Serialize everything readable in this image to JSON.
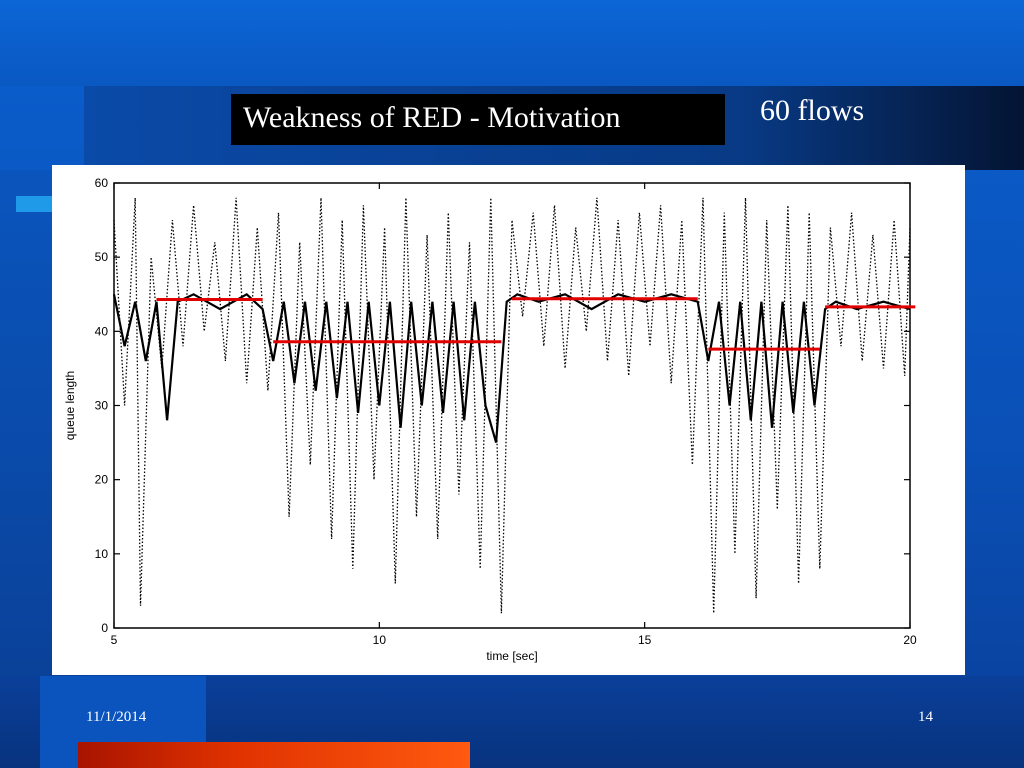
{
  "slide": {
    "title": "Weakness of RED - Motivation",
    "subtitle": "60 flows",
    "date": "11/1/2014",
    "page_number": "14"
  },
  "colors": {
    "background": "#0a5fcf",
    "title_box": "#000000",
    "average_lines": "#e00000",
    "accent_orange": "#ff5a10",
    "accent_cyan": "#1f9ae8"
  },
  "chart_data": {
    "type": "line",
    "xlabel": "time [sec]",
    "ylabel": "queue length",
    "xlim": [
      5,
      20
    ],
    "ylim": [
      0,
      60
    ],
    "x_ticks": [
      5,
      10,
      15,
      20
    ],
    "y_ticks": [
      0,
      10,
      20,
      30,
      40,
      50,
      60
    ],
    "grid": false,
    "series": [
      {
        "style": "dotted",
        "x": [
          5.0,
          5.2,
          5.4,
          5.5,
          5.7,
          5.9,
          6.1,
          6.3,
          6.5,
          6.7,
          6.9,
          7.1,
          7.3,
          7.5,
          7.7,
          7.9,
          8.1,
          8.3,
          8.5,
          8.7,
          8.9,
          9.1,
          9.3,
          9.5,
          9.7,
          9.9,
          10.1,
          10.3,
          10.5,
          10.7,
          10.9,
          11.1,
          11.3,
          11.5,
          11.7,
          11.9,
          12.1,
          12.3,
          12.5,
          12.7,
          12.9,
          13.1,
          13.3,
          13.5,
          13.7,
          13.9,
          14.1,
          14.3,
          14.5,
          14.7,
          14.9,
          15.1,
          15.3,
          15.5,
          15.7,
          15.9,
          16.1,
          16.3,
          16.5,
          16.7,
          16.9,
          17.1,
          17.3,
          17.5,
          17.7,
          17.9,
          18.1,
          18.3,
          18.5,
          18.7,
          18.9,
          19.1,
          19.3,
          19.5,
          19.7,
          19.9,
          20.0
        ],
        "values": [
          55,
          30,
          58,
          3,
          50,
          35,
          55,
          38,
          57,
          40,
          52,
          36,
          58,
          33,
          54,
          32,
          56,
          15,
          52,
          22,
          58,
          12,
          55,
          8,
          57,
          20,
          54,
          6,
          58,
          15,
          53,
          12,
          56,
          18,
          52,
          8,
          58,
          2,
          55,
          42,
          56,
          38,
          57,
          35,
          54,
          40,
          58,
          36,
          55,
          34,
          56,
          38,
          57,
          33,
          55,
          22,
          58,
          2,
          56,
          10,
          58,
          4,
          55,
          16,
          57,
          6,
          56,
          8,
          54,
          38,
          56,
          36,
          53,
          35,
          55,
          34,
          54
        ]
      },
      {
        "style": "solid",
        "x": [
          5.0,
          5.2,
          5.4,
          5.6,
          5.8,
          6.0,
          6.2,
          6.5,
          7.0,
          7.5,
          7.8,
          8.0,
          8.2,
          8.4,
          8.6,
          8.8,
          9.0,
          9.2,
          9.4,
          9.6,
          9.8,
          10.0,
          10.2,
          10.4,
          10.6,
          10.8,
          11.0,
          11.2,
          11.4,
          11.6,
          11.8,
          12.0,
          12.2,
          12.4,
          12.6,
          13.0,
          13.5,
          14.0,
          14.5,
          15.0,
          15.5,
          16.0,
          16.2,
          16.4,
          16.6,
          16.8,
          17.0,
          17.2,
          17.4,
          17.6,
          17.8,
          18.0,
          18.2,
          18.4,
          18.6,
          19.0,
          19.5,
          20.0
        ],
        "values": [
          45,
          38,
          44,
          36,
          44,
          28,
          44,
          45,
          43,
          45,
          43,
          36,
          44,
          33,
          44,
          32,
          44,
          31,
          44,
          29,
          44,
          30,
          44,
          27,
          44,
          30,
          44,
          29,
          44,
          28,
          44,
          30,
          25,
          44,
          45,
          44,
          45,
          43,
          45,
          44,
          45,
          44,
          36,
          44,
          30,
          44,
          28,
          44,
          27,
          44,
          29,
          44,
          30,
          43,
          44,
          43,
          44,
          43
        ]
      }
    ],
    "average_segments": [
      {
        "x": [
          5.8,
          7.8
        ],
        "y": 44.3
      },
      {
        "x": [
          8.0,
          12.3
        ],
        "y": 38.6
      },
      {
        "x": [
          12.5,
          16.0
        ],
        "y": 44.4
      },
      {
        "x": [
          16.2,
          18.3
        ],
        "y": 37.6
      },
      {
        "x": [
          18.4,
          20.1
        ],
        "y": 43.3
      }
    ]
  }
}
